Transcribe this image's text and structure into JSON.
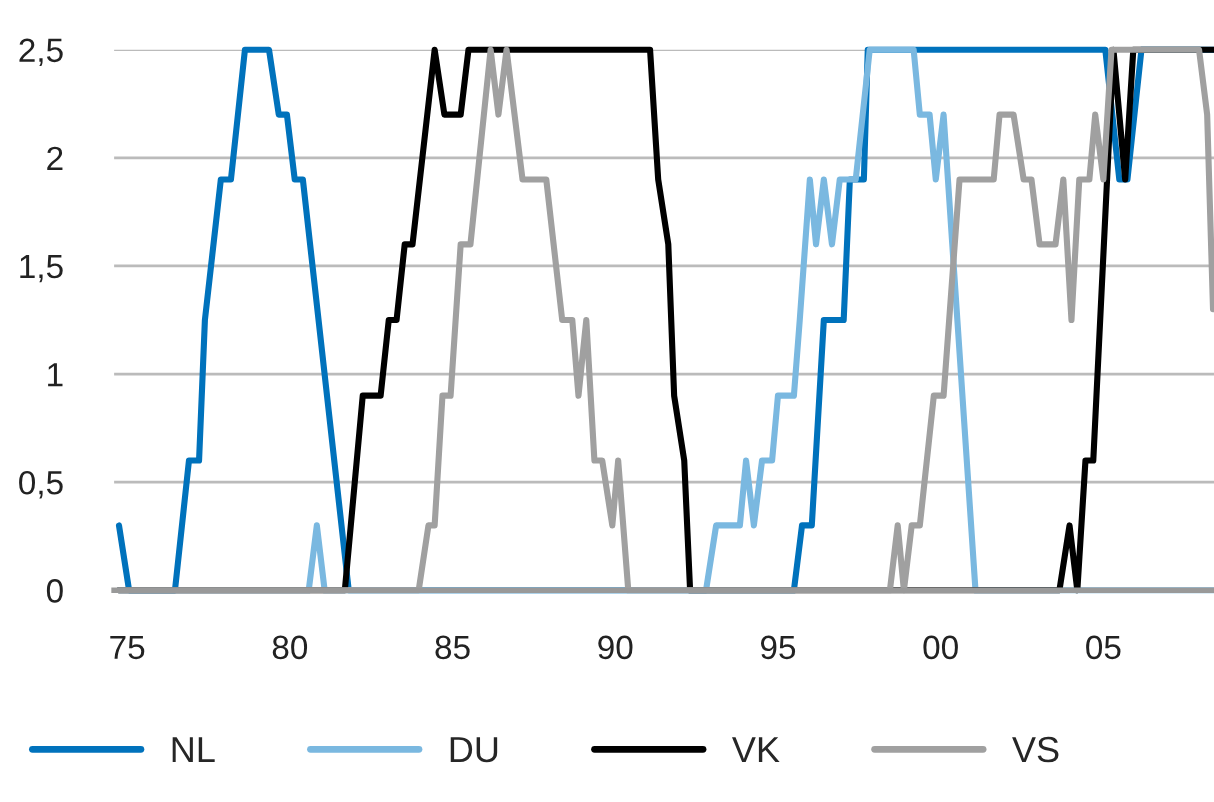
{
  "chart_data": {
    "type": "line",
    "xlim": [
      1974.6,
      2008.4
    ],
    "xticks": [
      {
        "value": 1975,
        "label": "75"
      },
      {
        "value": 1980,
        "label": "80"
      },
      {
        "value": 1985,
        "label": "85"
      },
      {
        "value": 1990,
        "label": "90"
      },
      {
        "value": 1995,
        "label": "95"
      },
      {
        "value": 2000,
        "label": "00"
      },
      {
        "value": 2005,
        "label": "05"
      }
    ],
    "ylim": [
      0,
      2.5
    ],
    "yticks": [
      {
        "value": 0,
        "label": "0"
      },
      {
        "value": 0.5,
        "label": "0,5"
      },
      {
        "value": 1,
        "label": "1"
      },
      {
        "value": 1.5,
        "label": "1,5"
      },
      {
        "value": 2,
        "label": "2"
      },
      {
        "value": 2.5,
        "label": "2,5"
      }
    ],
    "grid": "y",
    "legend": "bottom",
    "line_style": "solid",
    "marker": "none",
    "series": [
      {
        "name": "NL",
        "color": "#0072bc",
        "x": [
          1974.75,
          1975.06,
          1976.47,
          1976.9,
          1977.21,
          1977.39,
          1977.88,
          1978.19,
          1978.62,
          1979.36,
          1979.66,
          1979.91,
          1980.15,
          1980.4,
          1981.81,
          1995.49,
          1995.74,
          1996.04,
          1996.41,
          1997.02,
          1997.21,
          1997.64,
          1997.76,
          2005.06,
          2005.49,
          2005.74,
          2006.17,
          2008.37
        ],
        "values": [
          0.3,
          0,
          0,
          0.6,
          0.6,
          1.25,
          1.9,
          1.9,
          2.5,
          2.5,
          2.2,
          2.2,
          1.9,
          1.9,
          0,
          0,
          0.3,
          0.3,
          1.25,
          1.25,
          1.9,
          1.9,
          2.5,
          2.5,
          1.9,
          1.9,
          2.5,
          2.5
        ]
      },
      {
        "name": "DU",
        "color": "#7ab8e0",
        "x": [
          1974.75,
          1980.58,
          1980.83,
          1981.07,
          1992.79,
          1993.1,
          1993.83,
          1994.02,
          1994.26,
          1994.51,
          1994.82,
          1995.0,
          1995.49,
          1995.67,
          1995.98,
          1996.17,
          1996.41,
          1996.66,
          1996.9,
          1997.39,
          1997.82,
          1999.17,
          1999.36,
          1999.66,
          1999.85,
          2000.09,
          2001.07,
          2008.37
        ],
        "values": [
          0,
          0,
          0.3,
          0,
          0,
          0.3,
          0.3,
          0.6,
          0.3,
          0.6,
          0.6,
          0.9,
          0.9,
          1.25,
          1.9,
          1.6,
          1.9,
          1.6,
          1.9,
          1.9,
          2.5,
          2.5,
          2.2,
          2.2,
          1.9,
          2.2,
          0,
          0
        ]
      },
      {
        "name": "VK",
        "color": "#000000",
        "x": [
          1974.75,
          1981.69,
          1982.24,
          1982.79,
          1983.04,
          1983.28,
          1983.53,
          1983.77,
          1984.45,
          1984.75,
          1985.25,
          1985.49,
          1991.07,
          1991.32,
          1991.63,
          1991.81,
          1992.12,
          1992.3,
          2003.65,
          2003.96,
          2004.2,
          2004.45,
          2004.69,
          2005.31,
          2005.67,
          2005.92,
          2008.37
        ],
        "values": [
          0,
          0,
          0.9,
          0.9,
          1.25,
          1.25,
          1.6,
          1.6,
          2.5,
          2.2,
          2.2,
          2.5,
          2.5,
          1.9,
          1.6,
          0.9,
          0.6,
          0,
          0,
          0.3,
          0,
          0.6,
          0.6,
          2.5,
          1.9,
          2.5,
          2.5
        ]
      },
      {
        "name": "VS",
        "color": "#a0a0a0",
        "x": [
          1974.75,
          1983.96,
          1984.26,
          1984.45,
          1984.69,
          1984.94,
          1985.25,
          1985.55,
          1986.17,
          1986.41,
          1986.66,
          1987.15,
          1987.88,
          1988.37,
          1988.68,
          1988.87,
          1989.11,
          1989.36,
          1989.6,
          1989.91,
          1990.09,
          1990.4,
          1998.44,
          1998.68,
          1998.87,
          1999.11,
          1999.36,
          1999.79,
          2000.09,
          2000.58,
          2001.63,
          2001.81,
          2002.24,
          2002.55,
          2002.79,
          2003.04,
          2003.53,
          2003.77,
          2004.02,
          2004.26,
          2004.57,
          2004.75,
          2005.0,
          2005.25,
          2007.94,
          2008.19,
          2008.37
        ],
        "values": [
          0,
          0,
          0.3,
          0.3,
          0.9,
          0.9,
          1.6,
          1.6,
          2.5,
          2.2,
          2.5,
          1.9,
          1.9,
          1.25,
          1.25,
          0.9,
          1.25,
          0.6,
          0.6,
          0.3,
          0.6,
          0,
          0,
          0.3,
          0,
          0.3,
          0.3,
          0.9,
          0.9,
          1.9,
          1.9,
          2.2,
          2.2,
          1.9,
          1.9,
          1.6,
          1.6,
          1.9,
          1.25,
          1.9,
          1.9,
          2.2,
          1.9,
          2.5,
          2.5,
          2.2,
          1.3
        ]
      }
    ]
  }
}
